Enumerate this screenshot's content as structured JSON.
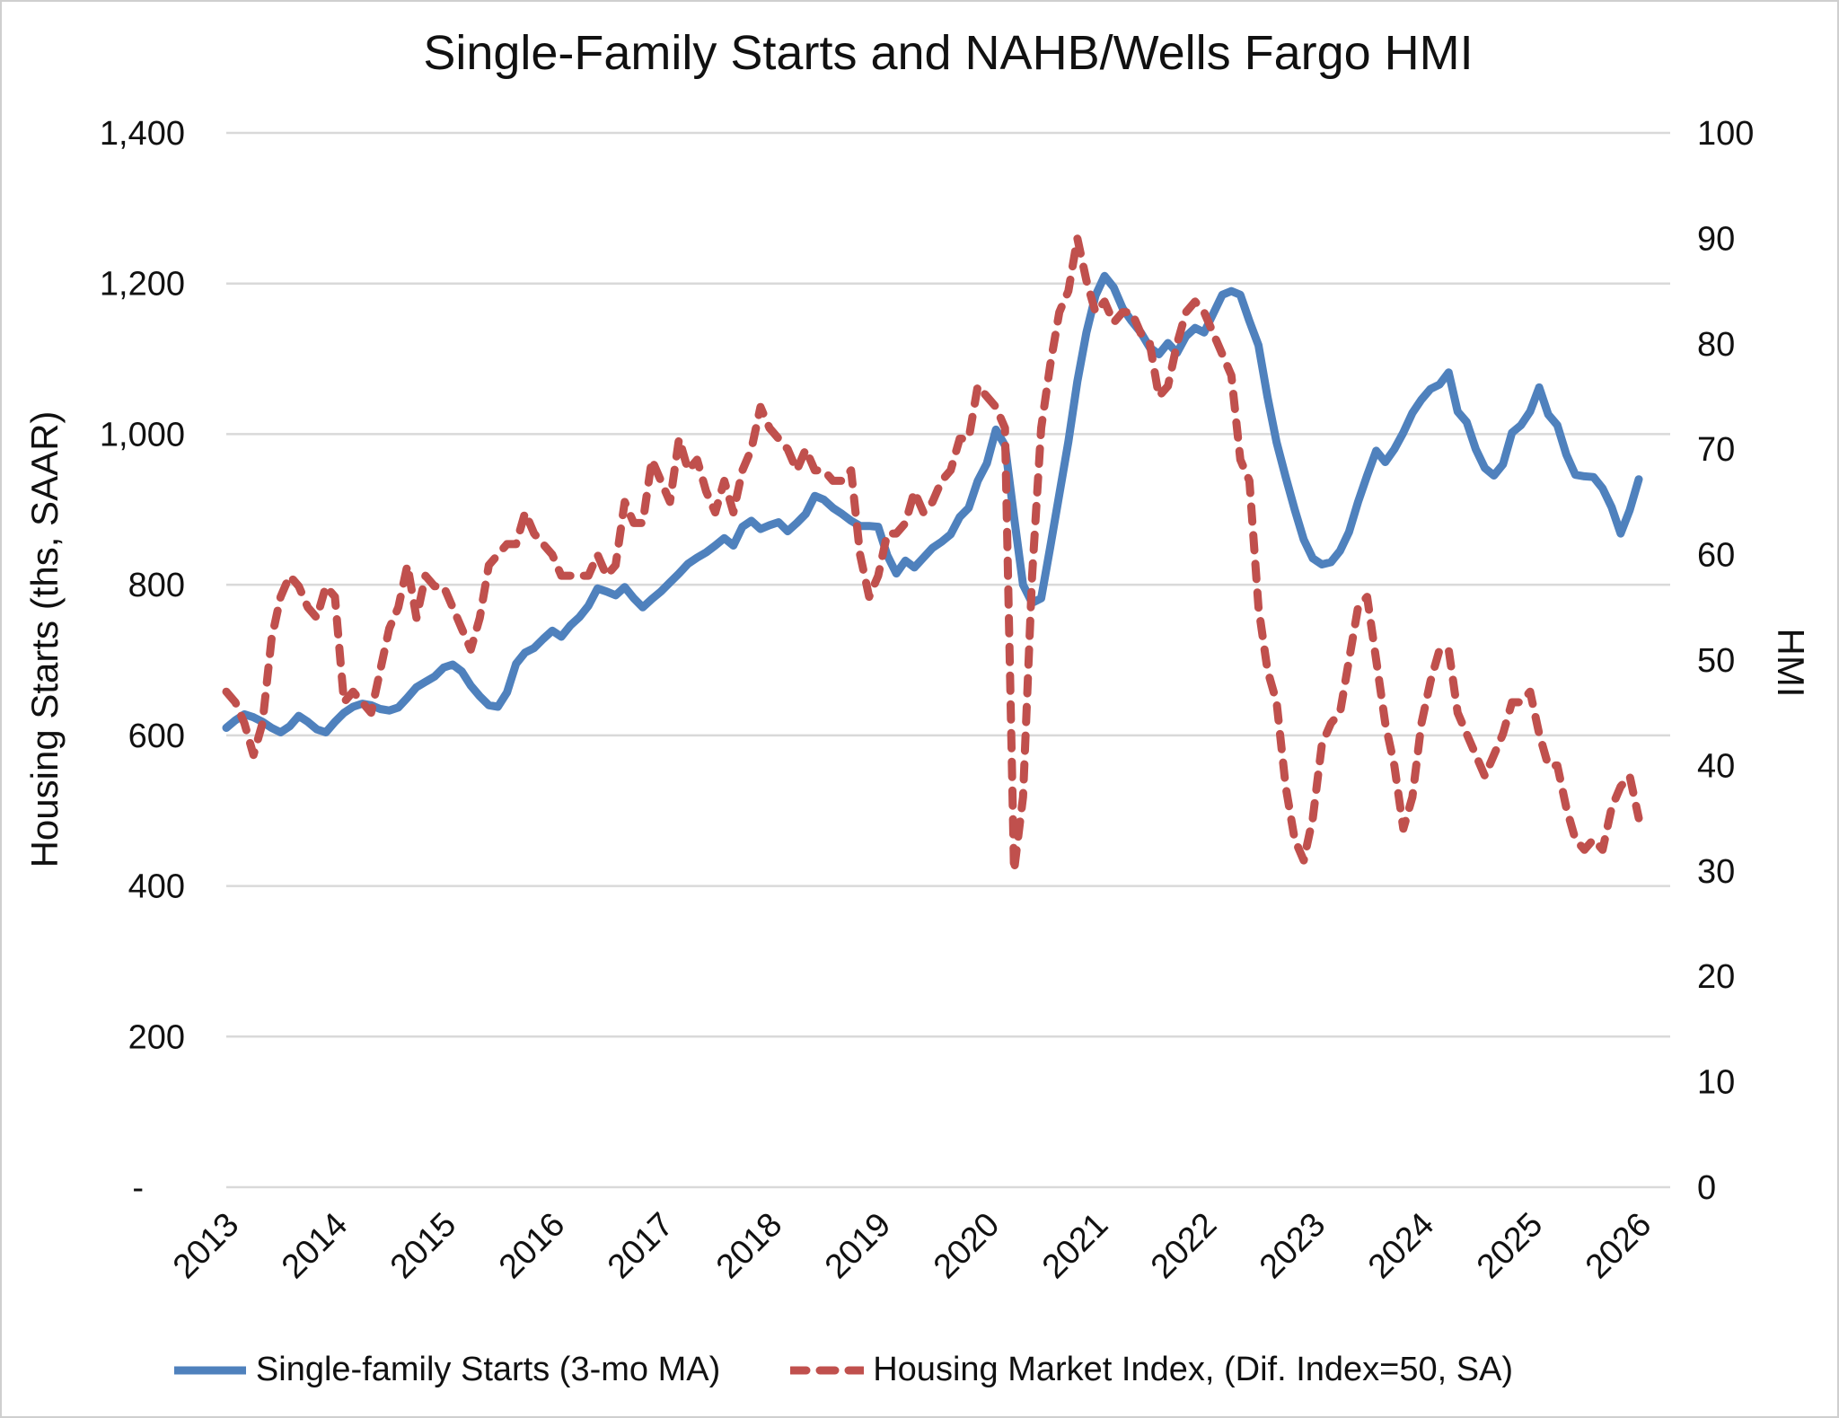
{
  "chart_data": {
    "type": "line",
    "title": "Single-Family Starts and NAHB/Wells Fargo HMI",
    "grid": "horizontal",
    "legend_position": "bottom",
    "start_month": "2013-01",
    "x_tick_labels": [
      "2013",
      "2014",
      "2015",
      "2016",
      "2017",
      "2018",
      "2019",
      "2020",
      "2021",
      "2022",
      "2023",
      "2024",
      "2025",
      "2026"
    ],
    "left_axis": {
      "title": "Housing Starts (ths, SAAR)",
      "min": 0,
      "max": 1400,
      "tick_step": 200,
      "tick_labels": [
        "-",
        "200",
        "400",
        "600",
        "800",
        "1,000",
        "1,200",
        "1,400"
      ]
    },
    "right_axis": {
      "title": "HMI",
      "min": 0,
      "max": 100,
      "tick_step": 10,
      "tick_labels": [
        "0",
        "10",
        "20",
        "30",
        "40",
        "50",
        "60",
        "70",
        "80",
        "90",
        "100"
      ]
    },
    "series": [
      {
        "name": "Single-family Starts (3-mo MA)",
        "axis": "left",
        "color": "#4F81BD",
        "style": "solid",
        "values": [
          610,
          620,
          628,
          624,
          618,
          610,
          604,
          612,
          626,
          618,
          608,
          604,
          618,
          630,
          638,
          642,
          640,
          635,
          633,
          637,
          650,
          664,
          671,
          678,
          690,
          694,
          685,
          666,
          652,
          640,
          638,
          657,
          695,
          710,
          716,
          728,
          739,
          731,
          746,
          757,
          772,
          795,
          791,
          786,
          797,
          782,
          770,
          781,
          791,
          803,
          815,
          828,
          836,
          843,
          852,
          862,
          852,
          877,
          885,
          874,
          879,
          883,
          871,
          882,
          894,
          918,
          913,
          902,
          894,
          885,
          878,
          878,
          877,
          839,
          815,
          832,
          823,
          836,
          849,
          857,
          867,
          890,
          902,
          938,
          961,
          1006,
          985,
          890,
          800,
          776,
          782,
          850,
          920,
          990,
          1070,
          1135,
          1184,
          1210,
          1195,
          1167,
          1150,
          1135,
          1115,
          1106,
          1121,
          1108,
          1130,
          1141,
          1135,
          1160,
          1185,
          1190,
          1185,
          1150,
          1118,
          1049,
          989,
          943,
          900,
          860,
          835,
          827,
          830,
          845,
          870,
          910,
          945,
          978,
          963,
          980,
          1002,
          1028,
          1046,
          1060,
          1066,
          1082,
          1030,
          1016,
          980,
          955,
          945,
          960,
          1002,
          1012,
          1030,
          1062,
          1026,
          1012,
          973,
          946,
          944,
          943,
          928,
          903,
          868,
          899,
          940
        ]
      },
      {
        "name": "Housing Market Index, (Dif. Index=50, SA)",
        "axis": "right",
        "color": "#C0504D",
        "style": "dashed",
        "values": [
          47,
          46,
          44,
          41,
          44,
          52,
          56,
          58,
          57,
          55,
          54,
          57,
          56,
          46,
          47,
          46,
          45,
          49,
          53,
          55,
          59,
          54,
          58,
          57,
          57,
          55,
          53,
          51,
          54,
          59,
          60,
          61,
          61,
          64,
          62,
          61,
          60,
          58,
          58,
          58,
          58,
          60,
          58,
          59,
          65,
          63,
          63,
          69,
          67,
          65,
          71,
          68,
          69,
          66,
          64,
          67,
          64,
          68,
          70,
          74,
          72,
          71,
          70,
          68,
          70,
          68,
          68,
          67,
          67,
          68,
          60,
          56,
          58,
          62,
          62,
          63,
          66,
          64,
          65,
          67,
          68,
          71,
          71,
          76,
          75,
          74,
          72,
          30,
          37,
          58,
          72,
          78,
          83,
          85,
          90,
          86,
          83,
          84,
          82,
          83,
          83,
          81,
          80,
          75,
          76,
          80,
          83,
          84,
          83,
          81,
          79,
          77,
          69,
          67,
          55,
          49,
          46,
          38,
          33,
          31,
          35,
          42,
          44,
          45,
          50,
          55,
          56,
          50,
          44,
          40,
          34,
          37,
          44,
          48,
          51,
          51,
          45,
          43,
          41,
          39,
          41,
          43,
          46,
          46,
          47,
          43,
          40,
          40,
          36,
          33,
          32,
          33,
          32,
          36,
          38,
          39,
          35
        ]
      }
    ],
    "style": {
      "gridline_color": "#D9D9D9",
      "text_color": "#111111",
      "line_width": 9,
      "dash_pattern": "17 15"
    }
  }
}
